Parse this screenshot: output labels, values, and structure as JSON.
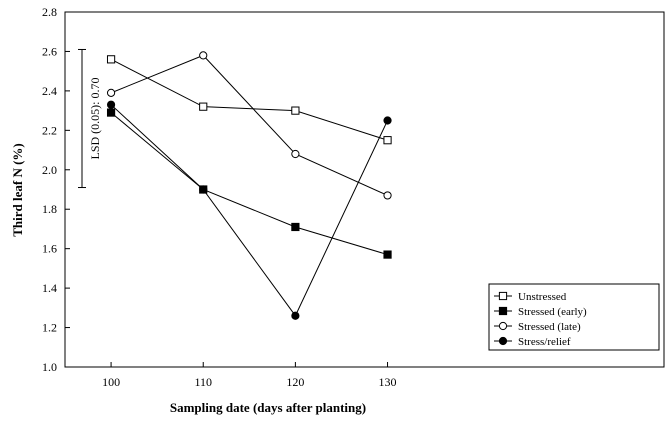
{
  "chart_data": {
    "type": "line",
    "title": "",
    "xlabel": "Sampling date (days after planting)",
    "ylabel": "Third leaf N (%)",
    "x": [
      100,
      110,
      120,
      130
    ],
    "xlim": [
      95,
      160
    ],
    "ylim": [
      1.0,
      2.8
    ],
    "y_ticks": [
      "1.0",
      "1.2",
      "1.4",
      "1.6",
      "1.8",
      "2.0",
      "2.2",
      "2.4",
      "2.6",
      "2.8"
    ],
    "x_ticks": [
      "100",
      "110",
      "120",
      "130"
    ],
    "grid": false,
    "legend_position": "bottom-right",
    "series": [
      {
        "name": "Unstressed",
        "marker": "open-square",
        "values": [
          2.56,
          2.32,
          2.3,
          2.15
        ]
      },
      {
        "name": "Stressed (early)",
        "marker": "filled-square",
        "values": [
          2.29,
          1.9,
          1.71,
          1.57
        ]
      },
      {
        "name": "Stressed (late)",
        "marker": "open-circle",
        "values": [
          2.39,
          2.58,
          2.08,
          1.87
        ]
      },
      {
        "name": "Stress/relief",
        "marker": "filled-circle",
        "values": [
          2.33,
          1.9,
          1.26,
          2.25
        ]
      }
    ],
    "annotation": {
      "text": "LSD (0.05): 0.70",
      "range": [
        1.91,
        2.61
      ]
    }
  }
}
